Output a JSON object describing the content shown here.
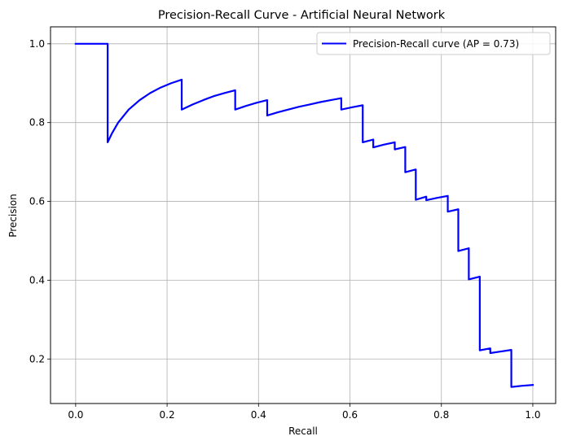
{
  "chart_data": {
    "type": "line",
    "title": "Precision-Recall Curve - Artificial Neural Network",
    "xlabel": "Recall",
    "ylabel": "Precision",
    "xlim": [
      -0.055,
      1.05
    ],
    "ylim": [
      0.087,
      1.043
    ],
    "xticks": [
      0.0,
      0.2,
      0.4,
      0.6,
      0.8,
      1.0
    ],
    "xtick_labels": [
      "0.0",
      "0.2",
      "0.4",
      "0.6",
      "0.8",
      "1.0"
    ],
    "yticks": [
      0.2,
      0.4,
      0.6,
      0.8,
      1.0
    ],
    "ytick_labels": [
      "0.2",
      "0.4",
      "0.6",
      "0.8",
      "1.0"
    ],
    "grid": true,
    "legend_position": "upper-right",
    "series": [
      {
        "name": "Precision-Recall curve (AP = 0.73)",
        "color": "#0000ff",
        "x": [
          0.0,
          0.07,
          0.07,
          0.08,
          0.093,
          0.116,
          0.14,
          0.163,
          0.186,
          0.209,
          0.232,
          0.232,
          0.256,
          0.279,
          0.302,
          0.326,
          0.349,
          0.349,
          0.372,
          0.395,
          0.419,
          0.419,
          0.442,
          0.465,
          0.488,
          0.512,
          0.535,
          0.558,
          0.581,
          0.581,
          0.605,
          0.628,
          0.628,
          0.651,
          0.651,
          0.674,
          0.698,
          0.698,
          0.721,
          0.721,
          0.744,
          0.744,
          0.767,
          0.767,
          0.791,
          0.814,
          0.814,
          0.837,
          0.837,
          0.86,
          0.86,
          0.884,
          0.884,
          0.907,
          0.907,
          0.93,
          0.953,
          0.953,
          0.977,
          1.0
        ],
        "y": [
          1.0,
          1.0,
          0.75,
          0.774,
          0.8,
          0.833,
          0.857,
          0.875,
          0.889,
          0.9,
          0.909,
          0.833,
          0.846,
          0.857,
          0.867,
          0.875,
          0.882,
          0.833,
          0.842,
          0.85,
          0.857,
          0.818,
          0.826,
          0.833,
          0.84,
          0.846,
          0.852,
          0.857,
          0.862,
          0.833,
          0.839,
          0.844,
          0.75,
          0.757,
          0.737,
          0.744,
          0.75,
          0.732,
          0.738,
          0.674,
          0.681,
          0.604,
          0.612,
          0.603,
          0.609,
          0.614,
          0.574,
          0.58,
          0.474,
          0.481,
          0.402,
          0.409,
          0.222,
          0.227,
          0.215,
          0.219,
          0.223,
          0.129,
          0.132,
          0.134
        ]
      }
    ]
  }
}
